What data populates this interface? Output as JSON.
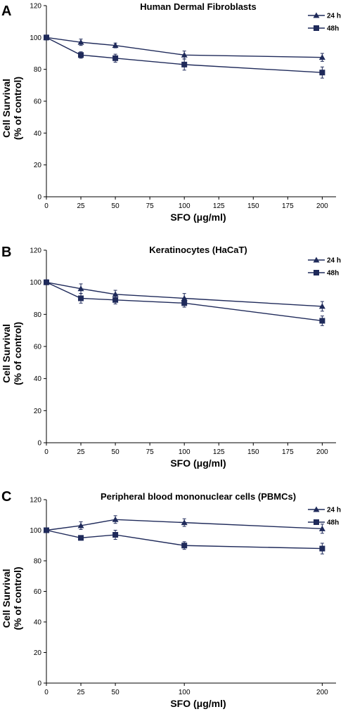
{
  "chart_data": [
    {
      "type": "line",
      "panel": "A",
      "title": "Human Dermal Fibroblasts",
      "xlabel": "SFO (μg/ml)",
      "ylabel_line1": "Cell Survival",
      "ylabel_line2": "(% of control)",
      "xlim": [
        0,
        210
      ],
      "ylim": [
        0,
        120
      ],
      "xticks": [
        0,
        25,
        50,
        75,
        100,
        125,
        150,
        175,
        200
      ],
      "yticks": [
        0,
        20,
        40,
        60,
        80,
        100,
        120
      ],
      "grid": false,
      "legend": "top-right",
      "series": [
        {
          "name": "24 h",
          "marker": "triangle",
          "x": [
            0,
            25,
            50,
            100,
            200
          ],
          "y": [
            100,
            97,
            95,
            89,
            87.5
          ],
          "err": [
            1.5,
            2,
            1.5,
            2.5,
            2.5
          ]
        },
        {
          "name": "48h",
          "marker": "square",
          "x": [
            0,
            25,
            50,
            100,
            200
          ],
          "y": [
            100,
            89,
            87,
            83,
            78
          ],
          "err": [
            1.5,
            2,
            2.5,
            3.5,
            3.5
          ]
        }
      ]
    },
    {
      "type": "line",
      "panel": "B",
      "title": "Keratinocytes (HaCaT)",
      "xlabel": "SFO (μg/ml)",
      "ylabel_line1": "Cell Survival",
      "ylabel_line2": "(% of control)",
      "xlim": [
        0,
        210
      ],
      "ylim": [
        0,
        120
      ],
      "xticks": [
        0,
        25,
        50,
        75,
        100,
        125,
        150,
        175,
        200
      ],
      "yticks": [
        0,
        20,
        40,
        60,
        80,
        100,
        120
      ],
      "grid": false,
      "legend": "top-right",
      "series": [
        {
          "name": "24 h",
          "marker": "triangle",
          "x": [
            0,
            25,
            50,
            100,
            200
          ],
          "y": [
            100,
            96,
            92.5,
            90,
            85
          ],
          "err": [
            1.5,
            3,
            2.5,
            3,
            3
          ]
        },
        {
          "name": "48h",
          "marker": "square",
          "x": [
            0,
            25,
            50,
            100,
            200
          ],
          "y": [
            100,
            90,
            89,
            87,
            76
          ],
          "err": [
            1.5,
            3,
            2.5,
            2.5,
            3
          ]
        }
      ]
    },
    {
      "type": "line",
      "panel": "C",
      "title": "Peripheral blood mononuclear cells (PBMCs)",
      "xlabel": "SFO (μg/ml)",
      "ylabel_line1": "Cell Survival",
      "ylabel_line2": "(% of control)",
      "xlim": [
        0,
        210
      ],
      "ylim": [
        0,
        120
      ],
      "xticks": [
        0,
        25,
        50,
        100,
        200
      ],
      "yticks": [
        0,
        20,
        40,
        60,
        80,
        100,
        120
      ],
      "grid": false,
      "legend": "top-right",
      "series": [
        {
          "name": "24 h",
          "marker": "triangle",
          "x": [
            0,
            25,
            50,
            100,
            200
          ],
          "y": [
            100,
            103,
            107,
            105,
            101
          ],
          "err": [
            1.5,
            2.5,
            2.5,
            2.5,
            3
          ]
        },
        {
          "name": "48h",
          "marker": "square",
          "x": [
            0,
            25,
            50,
            100,
            200
          ],
          "y": [
            100,
            95,
            97,
            90,
            88
          ],
          "err": [
            1.5,
            1.5,
            3,
            2.5,
            3.5
          ]
        }
      ]
    }
  ]
}
